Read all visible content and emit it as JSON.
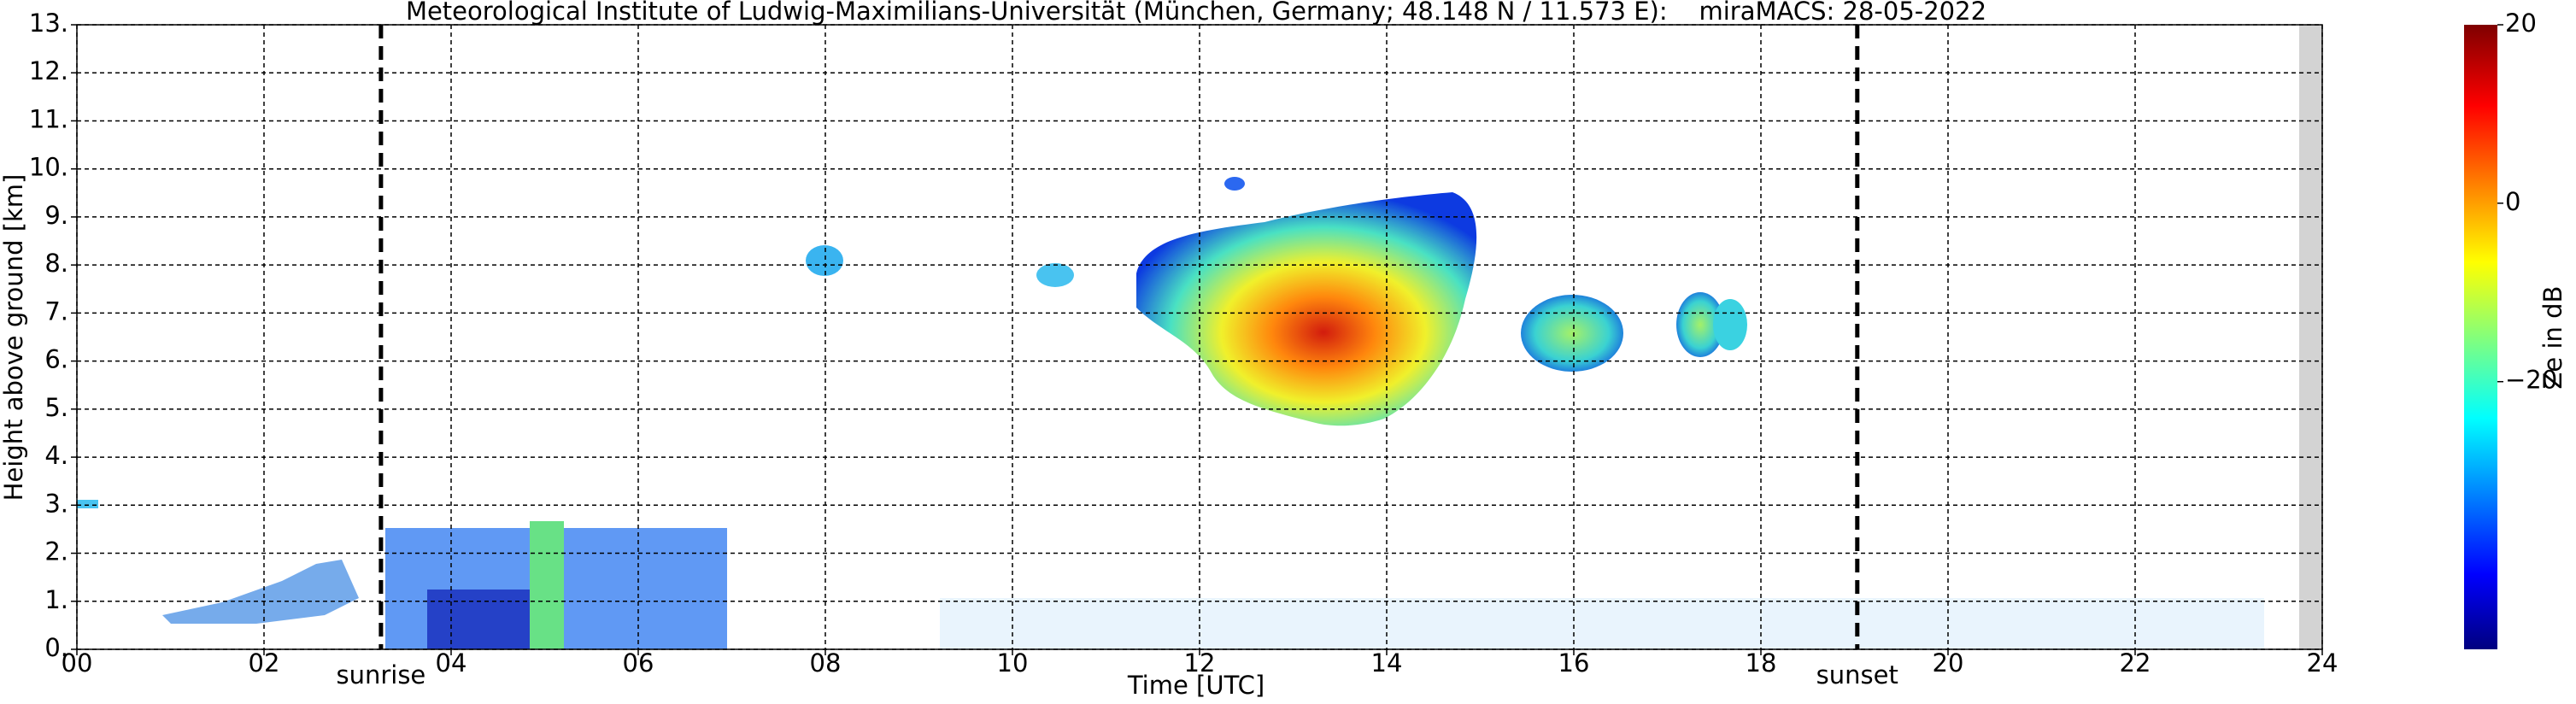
{
  "chart_data": {
    "type": "radar-time-height",
    "title": "Meteorological Institute of Ludwig-Maximilians-Universität (München, Germany; 48.148 N / 11.573 E):    miraMACS: 28-05-2022",
    "x_label": "Time [UTC]",
    "y_label": "Height above ground [km]",
    "xlim": [
      0,
      24
    ],
    "xticks": [
      {
        "value": 0,
        "label": "00"
      },
      {
        "value": 2,
        "label": "02"
      },
      {
        "value": 4,
        "label": "04"
      },
      {
        "value": 6,
        "label": "06"
      },
      {
        "value": 8,
        "label": "08"
      },
      {
        "value": 10,
        "label": "10"
      },
      {
        "value": 12,
        "label": "12"
      },
      {
        "value": 14,
        "label": "14"
      },
      {
        "value": 16,
        "label": "16"
      },
      {
        "value": 18,
        "label": "18"
      },
      {
        "value": 20,
        "label": "20"
      },
      {
        "value": 22,
        "label": "22"
      },
      {
        "value": 24,
        "label": "24"
      }
    ],
    "ylim": [
      0,
      13
    ],
    "yticks": [
      {
        "value": 0,
        "label": "0."
      },
      {
        "value": 1,
        "label": "1."
      },
      {
        "value": 2,
        "label": "2."
      },
      {
        "value": 3,
        "label": "3."
      },
      {
        "value": 4,
        "label": "4."
      },
      {
        "value": 5,
        "label": "5."
      },
      {
        "value": 6,
        "label": "6."
      },
      {
        "value": 7,
        "label": "7."
      },
      {
        "value": 8,
        "label": "8."
      },
      {
        "value": 9,
        "label": "9."
      },
      {
        "value": 10,
        "label": "10."
      },
      {
        "value": 11,
        "label": "11."
      },
      {
        "value": 12,
        "label": "12."
      },
      {
        "value": 13,
        "label": "13."
      }
    ],
    "grid": true,
    "annotations": [
      {
        "label": "sunrise",
        "x": 3.25
      },
      {
        "label": "sunset",
        "x": 19.03
      }
    ],
    "colorbar": {
      "label": "Ze in dB",
      "lim": [
        -50,
        20
      ],
      "ticks": [
        20,
        0,
        {
          "value": -20,
          "label": "−20"
        }
      ]
    }
  }
}
